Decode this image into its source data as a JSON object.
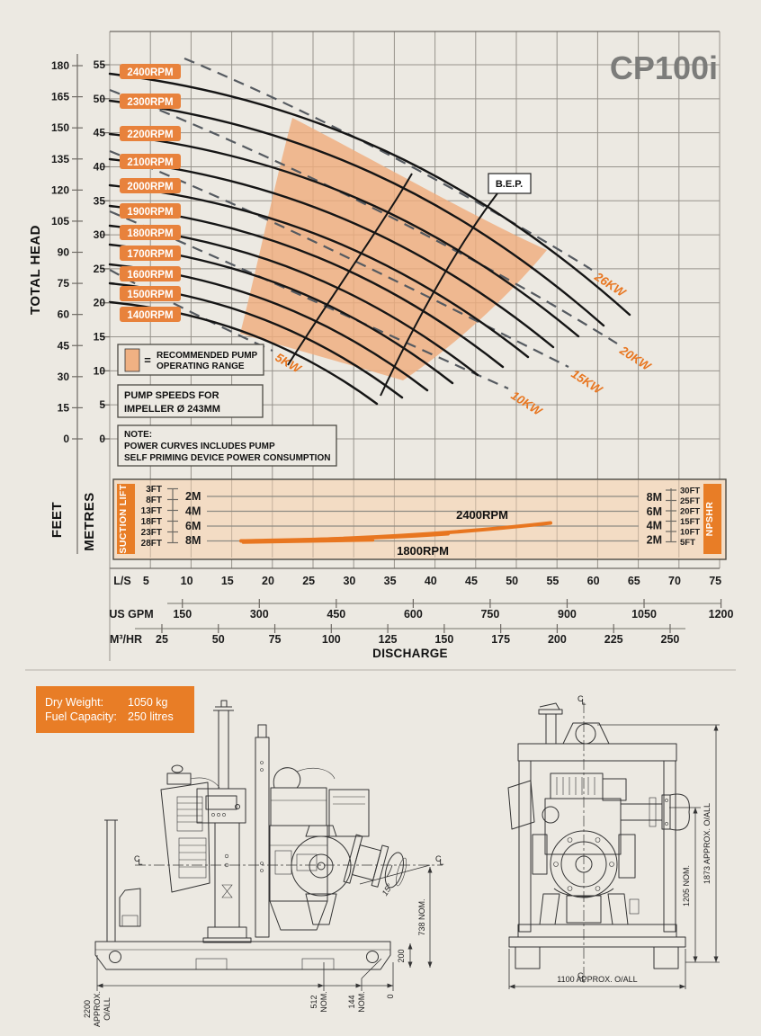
{
  "header": {
    "title": "CP100i"
  },
  "legend": {
    "range_equals": "=",
    "range_line1": "RECOMMENDED PUMP",
    "range_line2": "OPERATING RANGE",
    "speeds_line1": "PUMP SPEEDS FOR",
    "speeds_line2": "IMPELLER Ø 243MM",
    "note_line1": "NOTE:",
    "note_line2": "POWER CURVES INCLUDES PUMP",
    "note_line3": "SELF PRIMING DEVICE POWER CONSUMPTION",
    "bep_label": "B.E.P."
  },
  "axes": {
    "total_head": "TOTAL HEAD",
    "feet": "FEET",
    "metres": "METRES",
    "discharge": "DISCHARGE",
    "ls_label": "L/S",
    "gpm_label": "US GPM",
    "m3hr_label": "M³/HR"
  },
  "suction": {
    "left_title": "SUCTION LIFT",
    "right_title": "NPSHR",
    "left_ft": [
      "3FT",
      "8FT",
      "13FT",
      "18FT",
      "23FT",
      "28FT"
    ],
    "left_m": [
      "2M",
      "4M",
      "6M",
      "8M"
    ],
    "right_m": [
      "8M",
      "6M",
      "4M",
      "2M"
    ],
    "right_ft": [
      "30FT",
      "25FT",
      "20FT",
      "15FT",
      "10FT",
      "5FT"
    ],
    "curve_label_2400": "2400RPM",
    "curve_label_1800": "1800RPM"
  },
  "info_box": {
    "rows": [
      {
        "label": "Dry Weight:",
        "value": "1050 kg"
      },
      {
        "label": "Fuel Capacity:",
        "value": "250 litres"
      }
    ]
  },
  "drawings": {
    "cl_symbol": "CL",
    "side_view": {
      "dims": {
        "overall_length": [
          "2200",
          "APPROX.",
          "O/ALL"
        ],
        "dim512": [
          "512",
          "NOM."
        ],
        "dim144": [
          "144",
          "NOM."
        ],
        "zero": "0",
        "height738": "738 NOM.",
        "skid200": "200",
        "angle": "15°"
      }
    },
    "front_view": {
      "dims": {
        "overall_height": "1873 APPROX. O/ALL",
        "nom1205": "1205 NOM.",
        "overall_width": "1100 APPROX. O/ALL"
      }
    }
  },
  "chart_data": {
    "type": "line",
    "title": "CP100i",
    "xlabel": "DISCHARGE",
    "ylabel": "TOTAL HEAD",
    "x_axis": {
      "ls_ticks": [
        5,
        10,
        15,
        20,
        25,
        30,
        35,
        40,
        45,
        50,
        55,
        60,
        65,
        70,
        75
      ],
      "us_gpm_ticks": [
        150,
        300,
        450,
        600,
        750,
        900,
        1050,
        1200
      ],
      "m3hr_ticks": [
        25,
        50,
        75,
        100,
        125,
        150,
        175,
        200,
        225,
        250
      ]
    },
    "y_axis": {
      "metres_ticks": [
        0,
        5,
        10,
        15,
        20,
        25,
        30,
        35,
        40,
        45,
        50,
        55
      ],
      "feet_ticks": [
        0,
        15,
        30,
        45,
        60,
        75,
        90,
        105,
        120,
        135,
        150,
        165,
        180
      ]
    },
    "head_curves": [
      {
        "name": "2400RPM",
        "points_ls_m": [
          [
            0,
            53.7
          ],
          [
            34.8,
            41.6
          ],
          [
            64.5,
            18.2
          ]
        ]
      },
      {
        "name": "2300RPM",
        "points_ls_m": [
          [
            0,
            49.7
          ],
          [
            33.1,
            38.5
          ],
          [
            61.3,
            16.7
          ]
        ]
      },
      {
        "name": "2200RPM",
        "points_ls_m": [
          [
            0,
            44.8
          ],
          [
            31.4,
            34.7
          ],
          [
            58.2,
            15.1
          ]
        ]
      },
      {
        "name": "2100RPM",
        "points_ls_m": [
          [
            0,
            41.1
          ],
          [
            29.8,
            31.7
          ],
          [
            55.1,
            13.5
          ]
        ]
      },
      {
        "name": "2000RPM",
        "points_ls_m": [
          [
            0,
            37.3
          ],
          [
            28.1,
            28.7
          ],
          [
            52.0,
            12.0
          ]
        ]
      },
      {
        "name": "1900RPM",
        "points_ls_m": [
          [
            0,
            34.2
          ],
          [
            26.4,
            26.2
          ],
          [
            48.9,
            10.6
          ]
        ]
      },
      {
        "name": "1800RPM",
        "points_ls_m": [
          [
            0,
            31.3
          ],
          [
            24.7,
            23.9
          ],
          [
            45.8,
            9.4
          ]
        ]
      },
      {
        "name": "1700RPM",
        "points_ls_m": [
          [
            0,
            28.6
          ],
          [
            23.1,
            21.7
          ],
          [
            42.7,
            8.2
          ]
        ]
      },
      {
        "name": "1600RPM",
        "points_ls_m": [
          [
            0,
            25.7
          ],
          [
            21.4,
            19.4
          ],
          [
            39.6,
            7.1
          ]
        ]
      },
      {
        "name": "1500RPM",
        "points_ls_m": [
          [
            0,
            22.9
          ],
          [
            19.7,
            17.2
          ],
          [
            36.5,
            6.1
          ]
        ]
      },
      {
        "name": "1400RPM",
        "points_ls_m": [
          [
            0,
            20.1
          ],
          [
            18.0,
            15.0
          ],
          [
            33.4,
            5.2
          ]
        ]
      }
    ],
    "power_curves": [
      {
        "name": "26KW",
        "points_ls_m": [
          [
            9.7,
            55.9
          ],
          [
            59.8,
            24.9
          ]
        ]
      },
      {
        "name": "20KW",
        "points_ls_m": [
          [
            0.5,
            51.3
          ],
          [
            62.8,
            14.0
          ]
        ]
      },
      {
        "name": "15KW",
        "points_ls_m": [
          [
            0.5,
            42.3
          ],
          [
            56.7,
            10.6
          ]
        ]
      },
      {
        "name": "10KW",
        "points_ls_m": [
          [
            0.5,
            33.5
          ],
          [
            49.3,
            7.4
          ]
        ]
      },
      {
        "name": "5KW",
        "points_ls_m": [
          [
            0.5,
            24.9
          ],
          [
            20.8,
            13.0
          ]
        ]
      }
    ],
    "bep_line_ls_m": [
      [
        47.9,
        36.1
      ],
      [
        33.8,
        6.3
      ]
    ],
    "operating_range_corners_ls_m": [
      [
        23.0,
        47.2
      ],
      [
        54.3,
        27.8
      ],
      [
        36.6,
        8.6
      ],
      [
        16.6,
        15.5
      ]
    ],
    "suction_npshr": {
      "left_axis_suction_lift_m": [
        2,
        4,
        6,
        8
      ],
      "right_axis_npshr_m": [
        2,
        4,
        6,
        8
      ],
      "series": [
        {
          "name": "2400RPM",
          "points_ls_m": [
            [
              22,
              2.0
            ],
            [
              43,
              2.4
            ],
            [
              55,
              3.3
            ]
          ]
        },
        {
          "name": "1800RPM",
          "points_ls_m": [
            [
              17,
              2.1
            ],
            [
              33,
              2.1
            ],
            [
              42,
              2.3
            ]
          ]
        }
      ]
    }
  }
}
